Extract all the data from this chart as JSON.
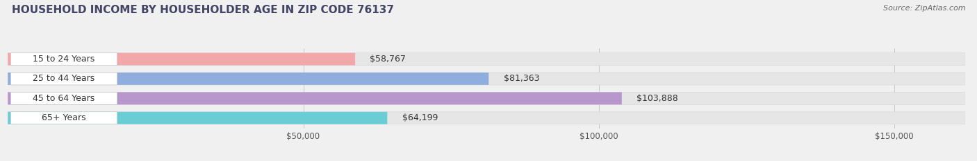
{
  "title": "HOUSEHOLD INCOME BY HOUSEHOLDER AGE IN ZIP CODE 76137",
  "source": "Source: ZipAtlas.com",
  "categories": [
    "15 to 24 Years",
    "25 to 44 Years",
    "45 to 64 Years",
    "65+ Years"
  ],
  "values": [
    58767,
    81363,
    103888,
    64199
  ],
  "bar_colors": [
    "#f2a8a8",
    "#90aedd",
    "#b897cc",
    "#6bcdd4"
  ],
  "bg_bar_color": "#e6e6e6",
  "bg_bar_edge": "#d8d8d8",
  "xlim_max": 162000,
  "xticks": [
    50000,
    100000,
    150000
  ],
  "xtick_labels": [
    "$50,000",
    "$100,000",
    "$150,000"
  ],
  "value_labels": [
    "$58,767",
    "$81,363",
    "$103,888",
    "$64,199"
  ],
  "background_color": "#f0f0f0",
  "title_fontsize": 11,
  "source_fontsize": 8,
  "label_fontsize": 9,
  "value_fontsize": 9,
  "tick_fontsize": 8.5
}
